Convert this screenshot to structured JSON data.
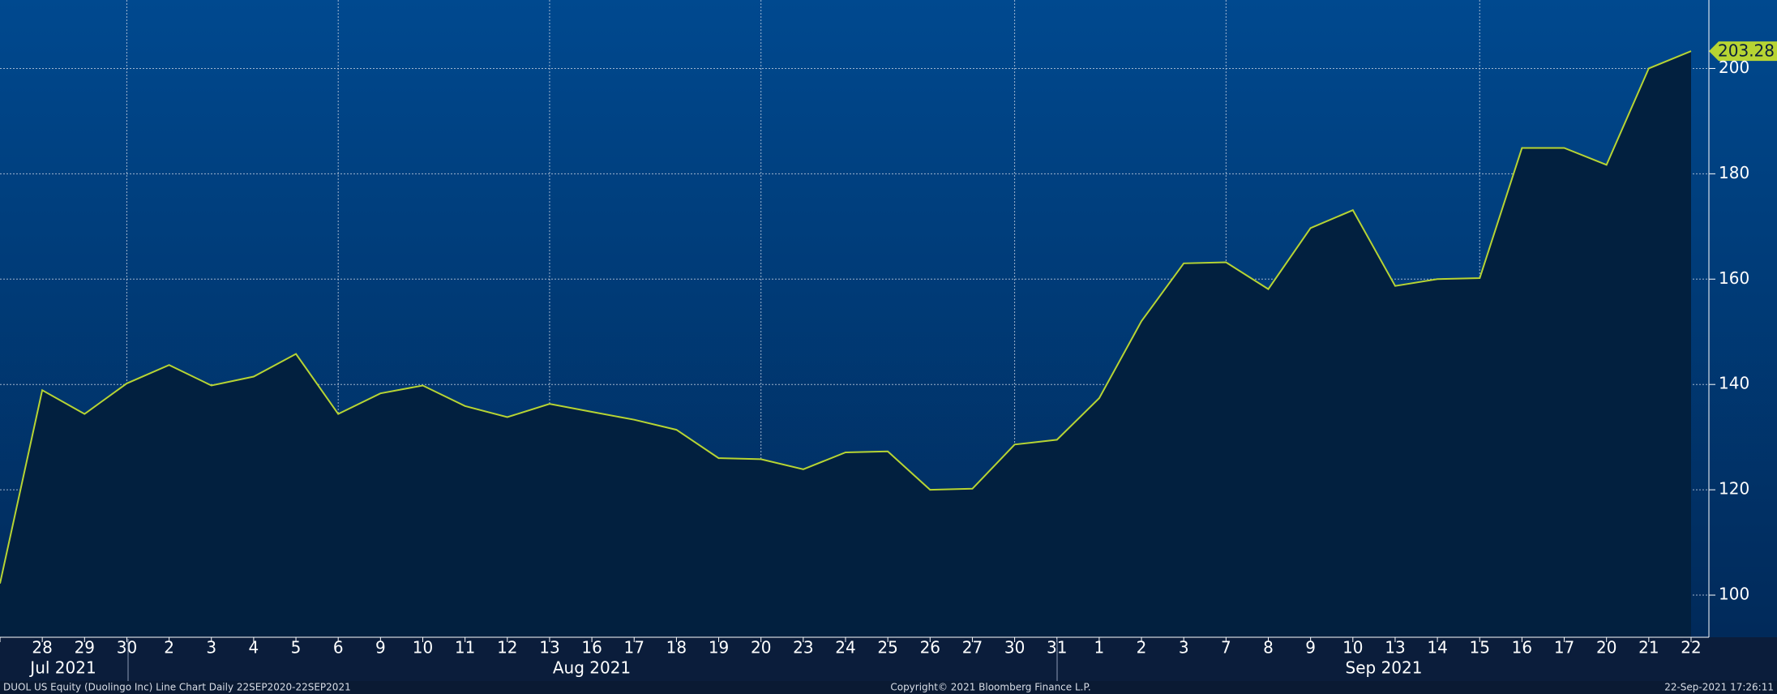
{
  "chart_data": {
    "type": "line",
    "categories": [
      null,
      "28",
      "29",
      "30",
      "2",
      "3",
      "4",
      "5",
      "6",
      "9",
      "10",
      "11",
      "12",
      "13",
      "16",
      "17",
      "18",
      "19",
      "20",
      "23",
      "24",
      "25",
      "26",
      "27",
      "30",
      "31",
      "1",
      "2",
      "3",
      "7",
      "8",
      "9",
      "10",
      "13",
      "14",
      "15",
      "16",
      "17",
      "20",
      "21",
      "22"
    ],
    "periods": [
      "Jul 2021",
      "Aug 2021",
      "Sep 2021"
    ],
    "series": [
      {
        "name": "DUOL US Equity",
        "color": "#b7d433",
        "values": [
          102.2,
          138.9,
          134.4,
          140.2,
          143.7,
          139.8,
          141.5,
          145.8,
          134.4,
          138.3,
          139.8,
          135.9,
          133.8,
          136.3,
          134.8,
          133.3,
          131.4,
          126.0,
          125.8,
          123.9,
          127.1,
          127.3,
          120.0,
          120.2,
          128.6,
          129.5,
          137.4,
          152.0,
          163.0,
          163.2,
          158.1,
          169.7,
          173.1,
          158.7,
          160.0,
          160.2,
          184.9,
          184.9,
          181.7,
          200.0,
          203.28
        ]
      }
    ],
    "ylim": [
      92,
      213
    ],
    "yticks": [
      100,
      120,
      140,
      160,
      180,
      200
    ],
    "grid": true
  },
  "footer": {
    "description": "DUOL US Equity (Duolingo Inc) Line Chart  Daily 22SEP2020-22SEP2021",
    "copyright": "Copyright© 2021 Bloomberg Finance L.P.",
    "timestamp": "22-Sep-2021 17:26:11"
  }
}
